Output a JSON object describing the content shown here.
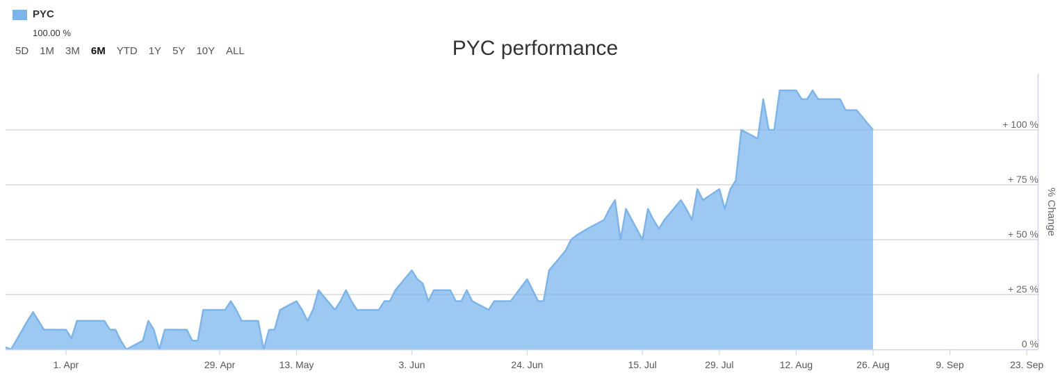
{
  "legend": {
    "name": "PYC",
    "value": "100.00 %",
    "color": "#7cb5ec"
  },
  "range_selector": {
    "buttons": [
      "5D",
      "1M",
      "3M",
      "6M",
      "YTD",
      "1Y",
      "5Y",
      "10Y",
      "ALL"
    ],
    "selected": "6M"
  },
  "chart_data": {
    "type": "area",
    "title": "PYC performance",
    "ylabel": "% Change",
    "ylim": [
      0,
      125
    ],
    "yticks": [
      0,
      25,
      50,
      75,
      100
    ],
    "ytick_labels": [
      "0 %",
      "+ 25 %",
      "+ 50 %",
      "+ 75 %",
      "+ 100 %"
    ],
    "xlim": [
      "2024-03-21",
      "2024-09-25"
    ],
    "xtick_dates": [
      "2024-04-01",
      "2024-04-29",
      "2024-05-13",
      "2024-06-03",
      "2024-06-24",
      "2024-07-15",
      "2024-07-29",
      "2024-08-12",
      "2024-08-26",
      "2024-09-09",
      "2024-09-23"
    ],
    "xtick_labels": [
      "1. Apr",
      "29. Apr",
      "13. May",
      "3. Jun",
      "24. Jun",
      "15. Jul",
      "29. Jul",
      "12. Aug",
      "26. Aug",
      "9. Sep",
      "23. Sep"
    ],
    "grid": true,
    "series": [
      {
        "name": "PYC",
        "color": "#7cb5ec",
        "points": [
          [
            "2024-03-21",
            1
          ],
          [
            "2024-03-22",
            0
          ],
          [
            "2024-03-25",
            13
          ],
          [
            "2024-03-26",
            17
          ],
          [
            "2024-03-27",
            13
          ],
          [
            "2024-03-28",
            9
          ],
          [
            "2024-04-01",
            9
          ],
          [
            "2024-04-02",
            5
          ],
          [
            "2024-04-03",
            13
          ],
          [
            "2024-04-04",
            13
          ],
          [
            "2024-04-05",
            13
          ],
          [
            "2024-04-08",
            13
          ],
          [
            "2024-04-09",
            9
          ],
          [
            "2024-04-10",
            9
          ],
          [
            "2024-04-11",
            4
          ],
          [
            "2024-04-12",
            0
          ],
          [
            "2024-04-15",
            4
          ],
          [
            "2024-04-16",
            13
          ],
          [
            "2024-04-17",
            9
          ],
          [
            "2024-04-18",
            0
          ],
          [
            "2024-04-19",
            9
          ],
          [
            "2024-04-22",
            9
          ],
          [
            "2024-04-23",
            9
          ],
          [
            "2024-04-24",
            4
          ],
          [
            "2024-04-25",
            4
          ],
          [
            "2024-04-26",
            18
          ],
          [
            "2024-04-29",
            18
          ],
          [
            "2024-04-30",
            18
          ],
          [
            "2024-05-01",
            22
          ],
          [
            "2024-05-02",
            18
          ],
          [
            "2024-05-03",
            13
          ],
          [
            "2024-05-06",
            13
          ],
          [
            "2024-05-07",
            0
          ],
          [
            "2024-05-08",
            9
          ],
          [
            "2024-05-09",
            9
          ],
          [
            "2024-05-10",
            18
          ],
          [
            "2024-05-13",
            22
          ],
          [
            "2024-05-14",
            18
          ],
          [
            "2024-05-15",
            13
          ],
          [
            "2024-05-16",
            18
          ],
          [
            "2024-05-17",
            27
          ],
          [
            "2024-05-20",
            18
          ],
          [
            "2024-05-21",
            22
          ],
          [
            "2024-05-22",
            27
          ],
          [
            "2024-05-23",
            22
          ],
          [
            "2024-05-24",
            18
          ],
          [
            "2024-05-28",
            18
          ],
          [
            "2024-05-29",
            22
          ],
          [
            "2024-05-30",
            22
          ],
          [
            "2024-05-31",
            27
          ],
          [
            "2024-06-03",
            36
          ],
          [
            "2024-06-04",
            32
          ],
          [
            "2024-06-05",
            30
          ],
          [
            "2024-06-06",
            22
          ],
          [
            "2024-06-07",
            27
          ],
          [
            "2024-06-10",
            27
          ],
          [
            "2024-06-11",
            22
          ],
          [
            "2024-06-12",
            22
          ],
          [
            "2024-06-13",
            27
          ],
          [
            "2024-06-14",
            22
          ],
          [
            "2024-06-17",
            18
          ],
          [
            "2024-06-18",
            22
          ],
          [
            "2024-06-20",
            22
          ],
          [
            "2024-06-21",
            22
          ],
          [
            "2024-06-24",
            32
          ],
          [
            "2024-06-25",
            27
          ],
          [
            "2024-06-26",
            22
          ],
          [
            "2024-06-27",
            22
          ],
          [
            "2024-06-28",
            36
          ],
          [
            "2024-07-01",
            45
          ],
          [
            "2024-07-02",
            50
          ],
          [
            "2024-07-03",
            52
          ],
          [
            "2024-07-05",
            55
          ],
          [
            "2024-07-08",
            59
          ],
          [
            "2024-07-09",
            64
          ],
          [
            "2024-07-10",
            68
          ],
          [
            "2024-07-11",
            50
          ],
          [
            "2024-07-12",
            64
          ],
          [
            "2024-07-15",
            50
          ],
          [
            "2024-07-16",
            64
          ],
          [
            "2024-07-17",
            59
          ],
          [
            "2024-07-18",
            55
          ],
          [
            "2024-07-19",
            59
          ],
          [
            "2024-07-22",
            68
          ],
          [
            "2024-07-23",
            64
          ],
          [
            "2024-07-24",
            59
          ],
          [
            "2024-07-25",
            73
          ],
          [
            "2024-07-26",
            68
          ],
          [
            "2024-07-29",
            73
          ],
          [
            "2024-07-30",
            64
          ],
          [
            "2024-07-31",
            73
          ],
          [
            "2024-08-01",
            77
          ],
          [
            "2024-08-02",
            100
          ],
          [
            "2024-08-05",
            96
          ],
          [
            "2024-08-06",
            114
          ],
          [
            "2024-08-07",
            100
          ],
          [
            "2024-08-08",
            100
          ],
          [
            "2024-08-09",
            118
          ],
          [
            "2024-08-12",
            118
          ],
          [
            "2024-08-13",
            114
          ],
          [
            "2024-08-14",
            114
          ],
          [
            "2024-08-15",
            118
          ],
          [
            "2024-08-16",
            114
          ],
          [
            "2024-08-19",
            114
          ],
          [
            "2024-08-20",
            114
          ],
          [
            "2024-08-21",
            109
          ],
          [
            "2024-08-22",
            109
          ],
          [
            "2024-08-23",
            109
          ],
          [
            "2024-08-26",
            100
          ]
        ]
      }
    ]
  }
}
